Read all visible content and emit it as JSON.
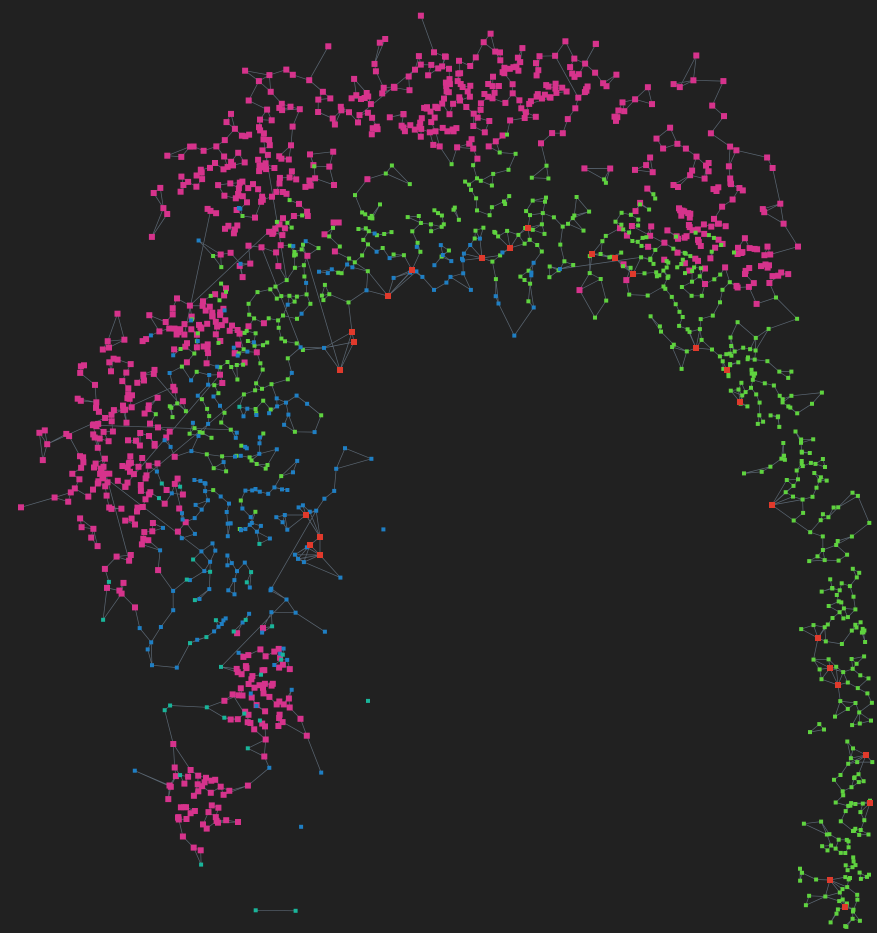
{
  "graph": {
    "background_color": "#212121",
    "edge_color": "#6f7f8f",
    "node_shape": "square",
    "node_types": [
      {
        "key": "pink",
        "color": "#d6338c"
      },
      {
        "key": "green",
        "color": "#5fd33f"
      },
      {
        "key": "blue",
        "color": "#1f7fc4"
      },
      {
        "key": "teal",
        "color": "#19b59a"
      },
      {
        "key": "red",
        "color": "#e03a2c"
      }
    ]
  }
}
